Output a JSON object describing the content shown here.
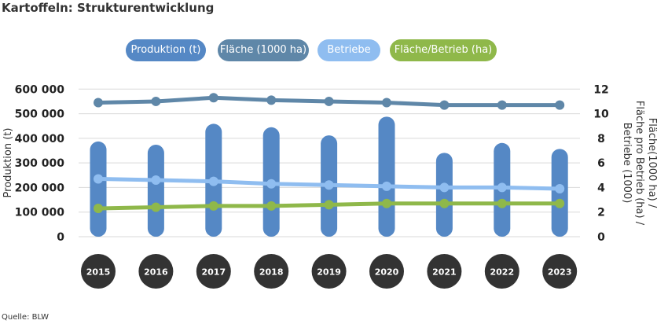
{
  "title": "Kartoffeln: Strukturentwicklung",
  "source": "Quelle: BLW",
  "chart_data": {
    "type": "bar+line",
    "categories": [
      "2015",
      "2016",
      "2017",
      "2018",
      "2019",
      "2020",
      "2021",
      "2022",
      "2023"
    ],
    "ylabel": "Produktion (t)",
    "ylabel_right": [
      "Fläche(1000 ha) /",
      "Fläche pro Betrieb (ha) /",
      "Betriebe (1000)"
    ],
    "ylim": [
      0,
      600000
    ],
    "ylim_right": [
      0,
      12
    ],
    "yticks": [
      "0",
      "100 000",
      "200 000",
      "300 000",
      "400 000",
      "500 000",
      "600 000"
    ],
    "yticks_right": [
      "0",
      "2",
      "4",
      "6",
      "8",
      "10",
      "12"
    ],
    "grid": true,
    "legend_position": "top",
    "series": [
      {
        "name": "Produktion (t)",
        "type": "bar",
        "axis": "left",
        "color": "#5588c5",
        "values": [
          387000,
          374000,
          459000,
          445000,
          412000,
          488000,
          341000,
          381000,
          357000
        ]
      },
      {
        "name": "Fläche (1000 ha)",
        "type": "line",
        "axis": "right",
        "color": "#5f87a8",
        "values": [
          10.9,
          11.0,
          11.3,
          11.1,
          11.0,
          10.9,
          10.7,
          10.7,
          10.7
        ]
      },
      {
        "name": "Betriebe",
        "type": "line",
        "axis": "right",
        "color": "#8fbdf0",
        "values": [
          4.7,
          4.6,
          4.5,
          4.3,
          4.2,
          4.1,
          4.0,
          4.0,
          3.9
        ]
      },
      {
        "name": "Fläche/Betrieb (ha)",
        "type": "line",
        "axis": "right",
        "color": "#8fb84a",
        "values": [
          2.3,
          2.4,
          2.5,
          2.5,
          2.6,
          2.7,
          2.7,
          2.7,
          2.7
        ]
      }
    ]
  }
}
